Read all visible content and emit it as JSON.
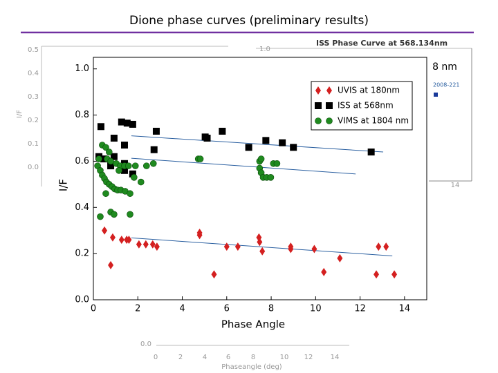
{
  "chart_data": {
    "type": "scatter",
    "title": "Dione phase curves (preliminary results)",
    "xlabel": "Phase Angle",
    "ylabel": "I/F",
    "annotation": "8 nm",
    "xlim": [
      0,
      15
    ],
    "ylim": [
      0,
      1.05
    ],
    "xticks": [
      0,
      2,
      4,
      6,
      8,
      10,
      12,
      14
    ],
    "yticks": [
      {
        "value": 0,
        "label": "0.0"
      },
      0.2,
      0.4,
      0.6,
      0.8,
      {
        "value": 1,
        "label": "1.0"
      }
    ],
    "legend": "upper right",
    "series": [
      {
        "name": "UVIS at 180nm",
        "color": "#d42020",
        "marker": "diamond",
        "x": [
          0.5,
          0.78,
          0.87,
          1.27,
          1.5,
          1.6,
          2.05,
          2.36,
          2.67,
          2.86,
          4.78,
          4.78,
          5.43,
          6.0,
          6.5,
          7.45,
          7.48,
          7.6,
          8.88,
          8.88,
          9.94,
          10.37,
          11.09,
          12.73,
          12.83,
          13.17,
          13.54
        ],
        "values": [
          0.3,
          0.15,
          0.27,
          0.26,
          0.26,
          0.26,
          0.24,
          0.24,
          0.24,
          0.23,
          0.29,
          0.28,
          0.11,
          0.23,
          0.23,
          0.27,
          0.25,
          0.21,
          0.23,
          0.22,
          0.22,
          0.12,
          0.18,
          0.11,
          0.23,
          0.23,
          0.11
        ]
      },
      {
        "name": "ISS at 568nm",
        "color": "#000000",
        "marker": "square",
        "x": [
          0.34,
          0.25,
          0.47,
          0.78,
          0.93,
          0.93,
          1.27,
          1.52,
          1.77,
          1.4,
          1.4,
          1.4,
          1.77,
          2.83,
          2.73,
          5.03,
          5.12,
          5.8,
          6.99,
          7.76,
          8.5,
          9.0,
          12.5
        ],
        "values": [
          0.75,
          0.62,
          0.61,
          0.58,
          0.7,
          0.62,
          0.77,
          0.765,
          0.76,
          0.67,
          0.59,
          0.56,
          0.545,
          0.73,
          0.65,
          0.705,
          0.7,
          0.73,
          0.66,
          0.69,
          0.68,
          0.66,
          0.64
        ]
      },
      {
        "name": "VIMS at 1804 nm",
        "color": "#1f8a1f",
        "marker": "circle",
        "x": [
          0.31,
          0.25,
          0.19,
          0.31,
          0.4,
          0.5,
          0.59,
          0.71,
          0.84,
          0.96,
          1.09,
          1.24,
          1.43,
          1.65,
          0.56,
          0.4,
          0.56,
          0.71,
          0.62,
          0.78,
          1.03,
          1.21,
          1.4,
          1.58,
          1.89,
          2.39,
          2.7,
          2.14,
          1.83,
          0.78,
          0.93,
          1.65,
          1.15,
          4.72,
          4.81,
          7.48,
          7.48,
          7.55,
          7.64,
          7.8,
          7.98,
          8.1,
          8.26,
          7.55
        ],
        "values": [
          0.36,
          0.61,
          0.58,
          0.56,
          0.54,
          0.525,
          0.51,
          0.5,
          0.49,
          0.48,
          0.475,
          0.475,
          0.47,
          0.46,
          0.46,
          0.67,
          0.66,
          0.64,
          0.61,
          0.6,
          0.59,
          0.58,
          0.58,
          0.58,
          0.58,
          0.58,
          0.59,
          0.51,
          0.53,
          0.38,
          0.37,
          0.37,
          0.56,
          0.61,
          0.61,
          0.6,
          0.57,
          0.55,
          0.53,
          0.53,
          0.53,
          0.59,
          0.59,
          0.61
        ]
      }
    ],
    "trend_lines": [
      {
        "color": "#2a5fa0",
        "x": [
          1.71,
          13.04
        ],
        "values": [
          0.71,
          0.64
        ]
      },
      {
        "color": "#2a5fa0",
        "x": [
          1.71,
          11.8
        ],
        "values": [
          0.613,
          0.545
        ]
      },
      {
        "color": "#2a5fa0",
        "x": [
          1.71,
          13.45
        ],
        "values": [
          0.268,
          0.19
        ]
      }
    ]
  },
  "background": {
    "left_axis_labels": [
      "0.5",
      "0.4",
      "0.3",
      "0.2",
      "0.1",
      "0.0"
    ],
    "left_axis_title": "I/F",
    "inset_title": "ISS Phase Curve at 568.134nm",
    "inset_top_label": "1.0",
    "inset_legend": "2008-221",
    "inset_tick": "14",
    "bottom_axis_zero": "0.0",
    "bottom_axis_labels": [
      "0",
      "2",
      "4",
      "6",
      "8",
      "10",
      "12",
      "14"
    ],
    "bottom_axis_title": "Phaseangle (deg)"
  }
}
